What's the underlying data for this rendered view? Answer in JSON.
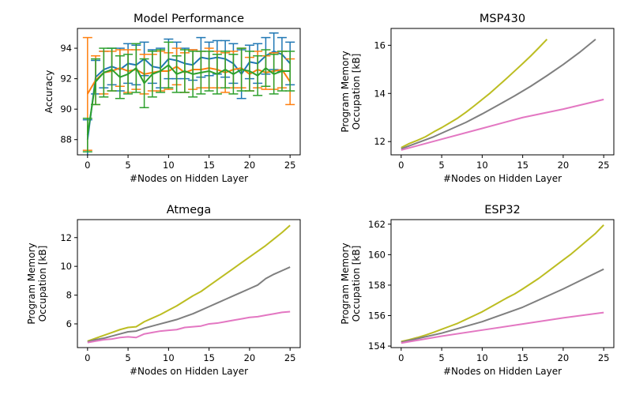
{
  "figure": {
    "background": "#ffffff",
    "axis_color": "#000000"
  },
  "chart_data": [
    {
      "type": "line",
      "title": "Model Performance",
      "xlabel": "#Nodes on Hidden Layer",
      "ylabel": "Accuracy",
      "xlim": [
        -1.25,
        26.25
      ],
      "ylim": [
        87.0,
        95.3
      ],
      "xticks": [
        0,
        5,
        10,
        15,
        20,
        25
      ],
      "yticks": [
        88,
        90,
        92,
        94
      ],
      "grid": false,
      "series": [
        {
          "color": "#1f77b4",
          "error_bars": true,
          "x": [
            0,
            1,
            2,
            3,
            4,
            5,
            6,
            7,
            8,
            9,
            10,
            11,
            12,
            13,
            14,
            15,
            16,
            17,
            18,
            19,
            20,
            21,
            22,
            23,
            24,
            25
          ],
          "y": [
            88.0,
            92.1,
            92.6,
            92.8,
            92.6,
            93.0,
            92.9,
            93.3,
            92.8,
            92.7,
            93.3,
            93.2,
            93.0,
            92.9,
            93.4,
            93.3,
            93.4,
            93.3,
            93.0,
            92.3,
            93.1,
            93.0,
            93.5,
            93.8,
            93.6,
            93.0
          ],
          "err": [
            1.3,
            1.1,
            1.2,
            1.2,
            1.4,
            1.3,
            1.3,
            1.1,
            1.1,
            1.3,
            1.3,
            1.2,
            1.0,
            1.0,
            1.3,
            1.1,
            1.1,
            1.2,
            1.3,
            1.6,
            1.1,
            1.3,
            1.2,
            1.2,
            1.1,
            1.4
          ]
        },
        {
          "color": "#ff7f0e",
          "error_bars": true,
          "x": [
            0,
            1,
            2,
            3,
            4,
            5,
            6,
            7,
            8,
            9,
            10,
            11,
            12,
            13,
            14,
            15,
            16,
            17,
            18,
            19,
            20,
            21,
            22,
            23,
            24,
            25
          ],
          "y": [
            91.0,
            91.9,
            92.4,
            92.5,
            92.7,
            92.5,
            92.6,
            92.3,
            92.4,
            92.5,
            92.5,
            92.8,
            92.4,
            92.6,
            92.6,
            92.7,
            92.6,
            92.4,
            92.6,
            92.7,
            92.3,
            92.6,
            92.4,
            92.5,
            92.6,
            91.8
          ],
          "err": [
            3.7,
            1.6,
            1.4,
            1.3,
            1.2,
            1.4,
            1.3,
            1.3,
            1.2,
            1.3,
            1.2,
            1.2,
            1.3,
            1.3,
            1.2,
            1.3,
            1.2,
            1.3,
            1.2,
            1.3,
            1.1,
            1.2,
            1.1,
            1.2,
            1.2,
            1.5
          ]
        },
        {
          "color": "#2ca02c",
          "error_bars": true,
          "x": [
            0,
            1,
            2,
            3,
            4,
            5,
            6,
            7,
            8,
            9,
            10,
            11,
            12,
            13,
            14,
            15,
            16,
            17,
            18,
            19,
            20,
            21,
            22,
            23,
            24,
            25
          ],
          "y": [
            88.3,
            91.8,
            92.4,
            92.6,
            92.1,
            92.3,
            92.7,
            91.7,
            92.3,
            92.5,
            92.9,
            92.3,
            92.5,
            92.3,
            92.4,
            92.5,
            92.3,
            92.6,
            92.3,
            92.6,
            92.5,
            92.2,
            92.7,
            92.3,
            92.5,
            92.5
          ],
          "err": [
            1.1,
            1.5,
            1.6,
            1.4,
            1.4,
            1.3,
            1.6,
            1.6,
            1.5,
            1.4,
            1.5,
            1.2,
            1.4,
            1.5,
            1.4,
            1.3,
            1.3,
            1.2,
            1.3,
            1.4,
            1.3,
            1.3,
            1.2,
            1.3,
            1.3,
            1.3
          ]
        }
      ]
    },
    {
      "type": "line",
      "title": "MSP430",
      "xlabel": "#Nodes on Hidden Layer",
      "ylabel": "Program Memory\nOccupation [kB]",
      "xlim": [
        -1.25,
        26.25
      ],
      "ylim": [
        11.45,
        16.7
      ],
      "xticks": [
        0,
        5,
        10,
        15,
        20,
        25
      ],
      "yticks": [
        12,
        14,
        16
      ],
      "grid": false,
      "series": [
        {
          "color": "#bcbd22",
          "x": [
            0,
            1,
            2,
            3,
            4,
            5,
            6,
            7,
            8,
            9,
            10,
            11,
            12,
            13,
            14,
            15,
            16,
            17,
            18
          ],
          "y": [
            11.75,
            11.92,
            12.05,
            12.2,
            12.4,
            12.58,
            12.78,
            12.98,
            13.22,
            13.48,
            13.75,
            14.02,
            14.32,
            14.62,
            14.93,
            15.24,
            15.56,
            15.9,
            16.25
          ]
        },
        {
          "color": "#7f7f7f",
          "x": [
            0,
            2,
            4,
            6,
            8,
            10,
            12,
            14,
            16,
            18,
            20,
            22,
            24
          ],
          "y": [
            11.7,
            11.95,
            12.2,
            12.5,
            12.8,
            13.15,
            13.52,
            13.9,
            14.3,
            14.74,
            15.2,
            15.7,
            16.25
          ]
        },
        {
          "color": "#e377c2",
          "x": [
            0,
            5,
            10,
            15,
            20,
            25
          ],
          "y": [
            11.65,
            12.1,
            12.55,
            13.0,
            13.35,
            13.75
          ]
        }
      ]
    },
    {
      "type": "line",
      "title": "Atmega",
      "xlabel": "#Nodes on Hidden Layer",
      "ylabel": "Program Memory\nOccupation [kB]",
      "xlim": [
        -1.25,
        26.25
      ],
      "ylim": [
        4.35,
        13.25
      ],
      "xticks": [
        0,
        5,
        10,
        15,
        20,
        25
      ],
      "yticks": [
        6,
        8,
        10,
        12
      ],
      "grid": false,
      "series": [
        {
          "color": "#bcbd22",
          "x": [
            0,
            1,
            2,
            3,
            4,
            5,
            6,
            7,
            8,
            9,
            10,
            11,
            12,
            13,
            14,
            15,
            16,
            17,
            18,
            19,
            20,
            21,
            22,
            23,
            24,
            25
          ],
          "y": [
            4.8,
            5.0,
            5.2,
            5.4,
            5.6,
            5.75,
            5.8,
            6.15,
            6.4,
            6.65,
            6.95,
            7.25,
            7.6,
            7.95,
            8.25,
            8.65,
            9.05,
            9.45,
            9.85,
            10.25,
            10.65,
            11.05,
            11.45,
            11.9,
            12.35,
            12.85
          ]
        },
        {
          "color": "#7f7f7f",
          "x": [
            0,
            1,
            2,
            3,
            4,
            5,
            6,
            7,
            8,
            9,
            10,
            11,
            12,
            13,
            14,
            15,
            16,
            17,
            18,
            19,
            20,
            21,
            22,
            23,
            24,
            25
          ],
          "y": [
            4.75,
            4.9,
            5.0,
            5.15,
            5.3,
            5.45,
            5.5,
            5.7,
            5.85,
            6.0,
            6.15,
            6.3,
            6.5,
            6.7,
            6.95,
            7.2,
            7.45,
            7.7,
            7.95,
            8.2,
            8.45,
            8.7,
            9.15,
            9.45,
            9.7,
            9.95
          ]
        },
        {
          "color": "#e377c2",
          "x": [
            0,
            1,
            2,
            3,
            4,
            5,
            6,
            7,
            8,
            9,
            10,
            11,
            12,
            13,
            14,
            15,
            16,
            17,
            18,
            19,
            20,
            21,
            22,
            23,
            24,
            25
          ],
          "y": [
            4.7,
            4.8,
            4.9,
            4.95,
            5.05,
            5.1,
            5.05,
            5.3,
            5.4,
            5.5,
            5.55,
            5.6,
            5.75,
            5.8,
            5.85,
            6.0,
            6.05,
            6.15,
            6.25,
            6.35,
            6.45,
            6.5,
            6.6,
            6.7,
            6.8,
            6.85
          ]
        }
      ]
    },
    {
      "type": "line",
      "title": "ESP32",
      "xlabel": "#Nodes on Hidden Layer",
      "ylabel": "Program Memory\nOccupation [kB]",
      "xlim": [
        -1.25,
        26.25
      ],
      "ylim": [
        153.9,
        162.3
      ],
      "xticks": [
        0,
        5,
        10,
        15,
        20,
        25
      ],
      "yticks": [
        154,
        156,
        158,
        160,
        162
      ],
      "grid": false,
      "series": [
        {
          "color": "#bcbd22",
          "x": [
            0,
            1,
            2,
            3,
            4,
            5,
            6,
            7,
            8,
            9,
            10,
            11,
            12,
            13,
            14,
            15,
            16,
            17,
            18,
            19,
            20,
            21,
            22,
            23,
            24,
            25
          ],
          "y": [
            154.3,
            154.42,
            154.56,
            154.72,
            154.9,
            155.1,
            155.3,
            155.5,
            155.75,
            156.0,
            156.25,
            156.55,
            156.85,
            157.15,
            157.42,
            157.75,
            158.1,
            158.45,
            158.85,
            159.25,
            159.65,
            160.05,
            160.5,
            160.95,
            161.4,
            161.95
          ]
        },
        {
          "color": "#7f7f7f",
          "x": [
            0,
            5,
            10,
            15,
            20,
            25
          ],
          "y": [
            154.25,
            154.85,
            155.6,
            156.55,
            157.75,
            159.05
          ]
        },
        {
          "color": "#e377c2",
          "x": [
            0,
            5,
            10,
            15,
            20,
            25
          ],
          "y": [
            154.2,
            154.65,
            155.05,
            155.45,
            155.85,
            156.2
          ]
        }
      ]
    }
  ]
}
